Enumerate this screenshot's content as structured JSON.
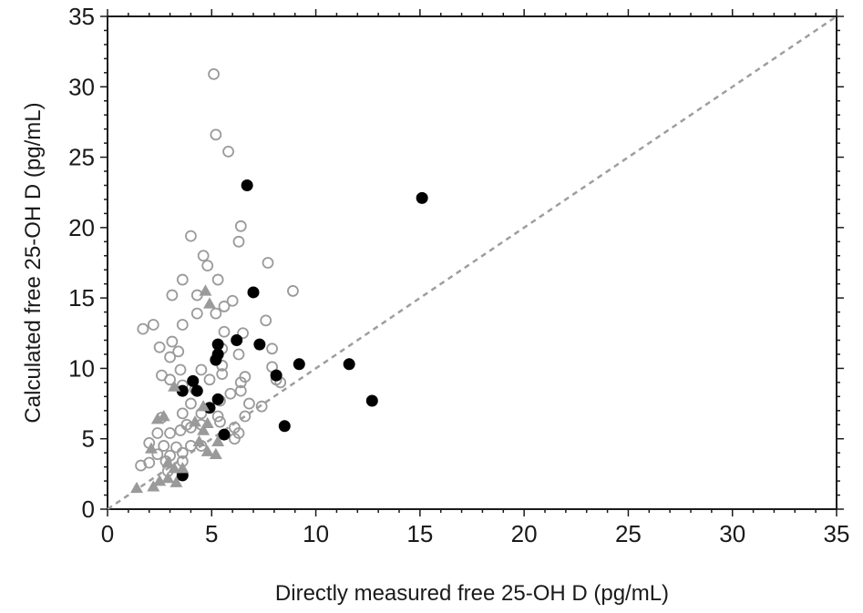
{
  "chart_data": {
    "type": "scatter",
    "title": "",
    "xlabel": "Directly measured free 25-OH D (pg/mL)",
    "ylabel": "Calculated free 25-OH D (pg/mL)",
    "xlim": [
      0,
      35
    ],
    "ylim": [
      0,
      35
    ],
    "xticks": [
      "0",
      "5",
      "10",
      "15",
      "20",
      "25",
      "30",
      "35"
    ],
    "yticks": [
      "0",
      "5",
      "10",
      "15",
      "20",
      "25",
      "30",
      "35"
    ],
    "grid": false,
    "legend": "none",
    "reference_line": {
      "style": "dashed",
      "color": "#9e9e9e",
      "from": [
        0,
        0
      ],
      "to": [
        35,
        35
      ]
    },
    "colors": {
      "open_circle": "#9a9a9a",
      "filled_circle": "#000000",
      "triangle": "#9a9a9a",
      "axis": "#1a1a1a"
    },
    "series": [
      {
        "marker": "open-circle",
        "points": [
          [
            5.1,
            30.9
          ],
          [
            5.2,
            26.6
          ],
          [
            5.8,
            25.4
          ],
          [
            6.4,
            20.1
          ],
          [
            6.3,
            19.0
          ],
          [
            4.0,
            19.4
          ],
          [
            4.6,
            18.0
          ],
          [
            4.8,
            17.3
          ],
          [
            7.7,
            17.5
          ],
          [
            8.9,
            15.5
          ],
          [
            3.6,
            16.3
          ],
          [
            5.3,
            16.3
          ],
          [
            4.3,
            15.2
          ],
          [
            3.1,
            15.2
          ],
          [
            6.0,
            14.8
          ],
          [
            5.6,
            14.4
          ],
          [
            7.6,
            13.4
          ],
          [
            4.3,
            13.9
          ],
          [
            5.2,
            13.9
          ],
          [
            3.6,
            13.1
          ],
          [
            2.2,
            13.1
          ],
          [
            1.7,
            12.8
          ],
          [
            5.6,
            12.6
          ],
          [
            6.5,
            12.5
          ],
          [
            3.1,
            11.9
          ],
          [
            2.5,
            11.5
          ],
          [
            5.5,
            11.4
          ],
          [
            7.9,
            11.4
          ],
          [
            3.4,
            11.2
          ],
          [
            6.3,
            11.0
          ],
          [
            3.0,
            10.8
          ],
          [
            5.5,
            10.2
          ],
          [
            3.5,
            9.9
          ],
          [
            4.5,
            9.9
          ],
          [
            7.9,
            10.1
          ],
          [
            2.6,
            9.5
          ],
          [
            5.5,
            9.6
          ],
          [
            6.6,
            9.4
          ],
          [
            8.1,
            9.2
          ],
          [
            8.3,
            9.0
          ],
          [
            3.0,
            9.2
          ],
          [
            4.9,
            9.2
          ],
          [
            6.4,
            9.0
          ],
          [
            3.6,
            8.8
          ],
          [
            4.2,
            8.5
          ],
          [
            5.9,
            8.2
          ],
          [
            6.4,
            8.4
          ],
          [
            4.0,
            7.5
          ],
          [
            5.4,
            7.7
          ],
          [
            6.8,
            7.5
          ],
          [
            7.4,
            7.3
          ],
          [
            3.6,
            6.8
          ],
          [
            4.5,
            6.8
          ],
          [
            5.3,
            6.6
          ],
          [
            6.6,
            6.6
          ],
          [
            2.6,
            6.5
          ],
          [
            3.8,
            6.0
          ],
          [
            4.5,
            6.0
          ],
          [
            5.4,
            6.2
          ],
          [
            6.1,
            5.8
          ],
          [
            2.4,
            5.4
          ],
          [
            3.0,
            5.4
          ],
          [
            3.5,
            5.6
          ],
          [
            4.0,
            5.8
          ],
          [
            6.3,
            5.4
          ],
          [
            2.0,
            4.7
          ],
          [
            2.7,
            4.5
          ],
          [
            3.3,
            4.4
          ],
          [
            4.0,
            4.5
          ],
          [
            4.5,
            4.5
          ],
          [
            6.1,
            5.0
          ],
          [
            2.4,
            3.9
          ],
          [
            3.0,
            3.8
          ],
          [
            3.6,
            4.0
          ],
          [
            2.8,
            3.4
          ],
          [
            3.6,
            3.4
          ],
          [
            2.0,
            3.3
          ],
          [
            1.6,
            3.1
          ],
          [
            2.9,
            2.7
          ]
        ]
      },
      {
        "marker": "filled-circle",
        "points": [
          [
            6.7,
            23.0
          ],
          [
            15.1,
            22.1
          ],
          [
            7.0,
            15.4
          ],
          [
            5.3,
            11.7
          ],
          [
            6.2,
            12.0
          ],
          [
            7.3,
            11.7
          ],
          [
            5.3,
            11.0
          ],
          [
            5.2,
            10.6
          ],
          [
            9.2,
            10.3
          ],
          [
            11.6,
            10.3
          ],
          [
            8.1,
            9.5
          ],
          [
            4.1,
            9.1
          ],
          [
            3.6,
            8.4
          ],
          [
            4.3,
            8.4
          ],
          [
            5.3,
            7.8
          ],
          [
            12.7,
            7.7
          ],
          [
            4.9,
            7.2
          ],
          [
            8.5,
            5.9
          ],
          [
            5.6,
            5.3
          ],
          [
            3.6,
            2.4
          ]
        ]
      },
      {
        "marker": "triangle",
        "points": [
          [
            4.7,
            15.5
          ],
          [
            4.9,
            14.6
          ],
          [
            3.2,
            8.7
          ],
          [
            4.6,
            7.3
          ],
          [
            2.4,
            6.4
          ],
          [
            2.7,
            6.6
          ],
          [
            4.2,
            6.2
          ],
          [
            4.6,
            5.6
          ],
          [
            4.8,
            6.1
          ],
          [
            4.4,
            4.8
          ],
          [
            5.3,
            4.8
          ],
          [
            4.8,
            4.1
          ],
          [
            5.2,
            3.9
          ],
          [
            2.1,
            4.3
          ],
          [
            2.9,
            3.3
          ],
          [
            3.2,
            2.9
          ],
          [
            3.6,
            2.9
          ],
          [
            2.9,
            2.2
          ],
          [
            2.5,
            2.0
          ],
          [
            3.3,
            1.9
          ],
          [
            1.4,
            1.5
          ],
          [
            2.2,
            1.6
          ]
        ]
      }
    ]
  }
}
